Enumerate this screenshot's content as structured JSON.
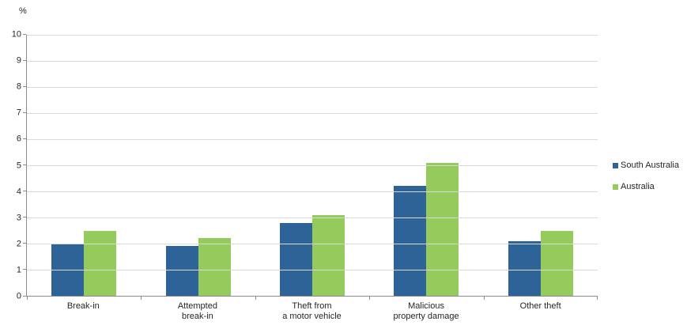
{
  "chart_data": {
    "type": "bar",
    "title": "",
    "xlabel": "",
    "ylabel": "%",
    "ylim": [
      0,
      10
    ],
    "ytick_step": 1,
    "grid": true,
    "legend_position": "right",
    "categories": [
      "Break-in",
      "Attempted\nbreak-in",
      "Theft from\na motor vehicle",
      "Malicious\nproperty damage",
      "Other theft"
    ],
    "series": [
      {
        "name": "South Australia",
        "color": "#2E6398",
        "values": [
          2.0,
          1.9,
          2.8,
          4.2,
          2.1
        ]
      },
      {
        "name": "Australia",
        "color": "#95CB5C",
        "values": [
          2.5,
          2.2,
          3.1,
          5.1,
          2.5
        ]
      }
    ]
  },
  "colors": {
    "gridline": "#D9D9D9",
    "axis": "#8C8C8C",
    "text": "#262626",
    "background": "#FFFFFF"
  }
}
